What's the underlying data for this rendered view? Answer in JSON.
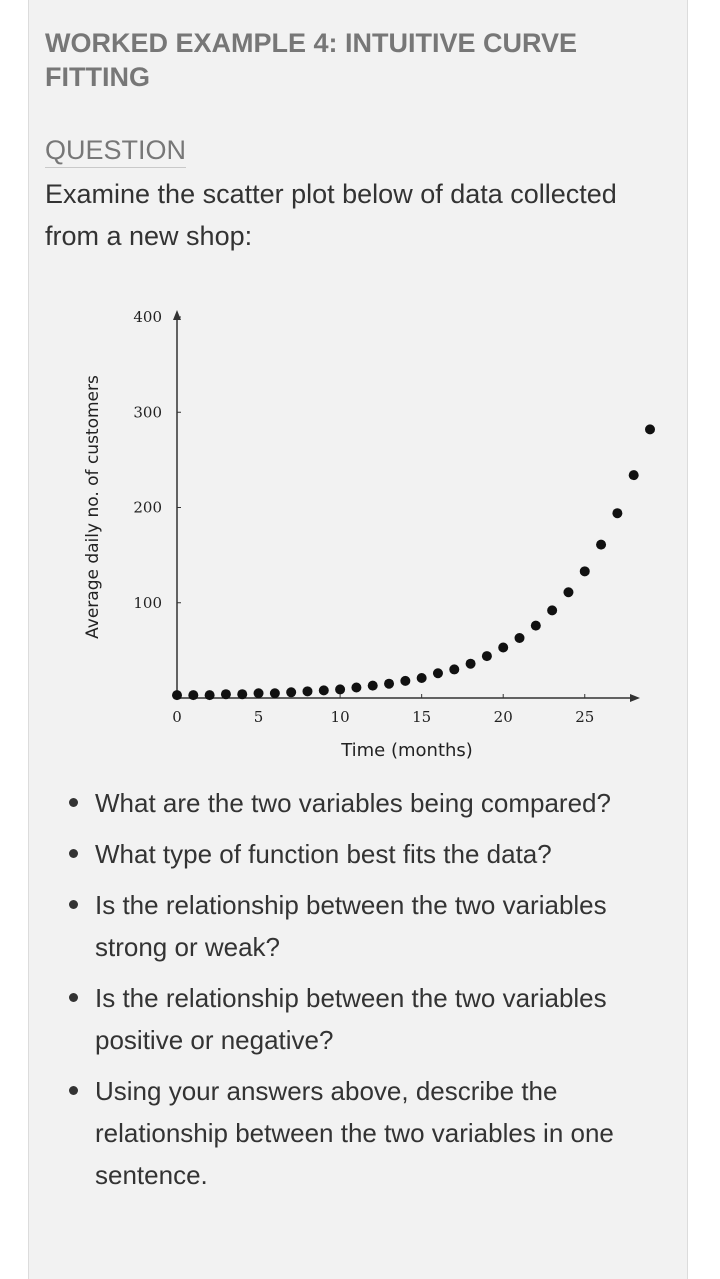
{
  "title": "WORKED EXAMPLE 4: INTUITIVE CURVE FITTING",
  "section_label": "QUESTION",
  "intro": "Examine the scatter plot below of data collected from a new shop:",
  "chart_data": {
    "type": "scatter",
    "xlabel": "Time (months)",
    "ylabel": "Average daily no. of customers",
    "x_ticks": [
      "0",
      "5",
      "10",
      "15",
      "20",
      "25"
    ],
    "y_ticks": [
      "100",
      "200",
      "300",
      "400"
    ],
    "xlim": [
      0,
      29
    ],
    "ylim": [
      0,
      400
    ],
    "x": [
      0,
      1,
      2,
      3,
      4,
      5,
      6,
      7,
      8,
      9,
      10,
      11,
      12,
      13,
      14,
      15,
      16,
      17,
      18,
      19,
      20,
      21,
      22,
      23,
      24,
      25,
      26,
      27,
      28,
      29
    ],
    "y": [
      3,
      3,
      3,
      4,
      4,
      5,
      5,
      6,
      7,
      8,
      9,
      11,
      13,
      15,
      18,
      21,
      26,
      30,
      36,
      44,
      53,
      63,
      76,
      92,
      111,
      133,
      161,
      194,
      234,
      282
    ],
    "grid": false,
    "colors": {
      "points": "#111111",
      "axes": "#333333"
    }
  },
  "questions": [
    "What are the two variables being compared?",
    "What type of function best fits the data?",
    "Is the relationship between the two variables strong or weak?",
    "Is the relationship between the two variables positive or negative?",
    "Using your answers above, describe the relationship between the two variables in one sentence."
  ]
}
